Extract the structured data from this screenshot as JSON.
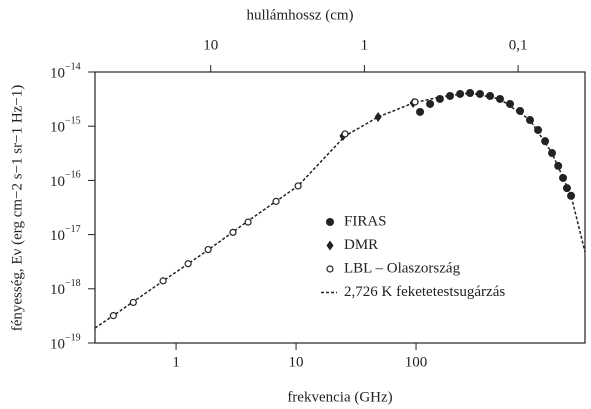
{
  "chart_data": {
    "type": "scatter",
    "xlabel": "frekvencia (GHz)",
    "x2label": "hullámhossz (cm)",
    "ylabel": "fényesség, Eν (erg cm−2 s−1 sr−1 Hz−1)",
    "xscale": "log",
    "yscale": "log",
    "x2scale": "log",
    "xlim": [
      0.211,
      2560
    ],
    "xticks": [
      1,
      10,
      100
    ],
    "x2lim": [
      56.6,
      0.0367
    ],
    "x2ticks": [
      10,
      1,
      {
        "value": 0.1,
        "label": "0,1"
      }
    ],
    "ylim": [
      1e-19,
      1e-14
    ],
    "yticks": [
      {
        "value": 1e-19,
        "label": "10",
        "exponent": "−19"
      },
      {
        "value": 1e-18,
        "label": "10",
        "exponent": "−18"
      },
      {
        "value": 1e-17,
        "label": "10",
        "exponent": "−17"
      },
      {
        "value": 1e-16,
        "label": "10",
        "exponent": "−16"
      },
      {
        "value": 1e-15,
        "label": "10",
        "exponent": "−15"
      },
      {
        "value": 1e-14,
        "label": "10",
        "exponent": "−14"
      }
    ],
    "legend": "right",
    "series": [
      {
        "name": "FIRAS",
        "marker": "filled-circle",
        "color": "#222",
        "x": [
          108,
          131,
          158,
          192,
          233,
          282,
          341,
          414,
          501,
          607,
          736,
          891,
          1040,
          1190,
          1360,
          1530,
          1680,
          1810,
          1960
        ],
        "values": [
          1.83e-15,
          2.57e-15,
          3.18e-15,
          3.61e-15,
          3.93e-15,
          4.1e-15,
          3.93e-15,
          3.61e-15,
          3.18e-15,
          2.57e-15,
          1.91e-15,
          1.3e-15,
          8.5e-16,
          5.3e-16,
          3.2e-16,
          1.85e-16,
          1.11e-16,
          7.2e-17,
          5.2e-17
        ]
      },
      {
        "name": "DMR",
        "marker": "diamond",
        "color": "#222",
        "x": [
          24.6,
          48.3,
          94.5
        ],
        "values": [
          6.6e-16,
          1.48e-15,
          2.68e-15
        ]
      },
      {
        "name": "LBL – Olaszország",
        "marker": "open-circle",
        "color": "#222",
        "x": [
          0.3,
          0.44,
          0.78,
          1.26,
          1.85,
          2.98,
          3.98,
          6.81,
          10.4,
          25.6,
          98
        ],
        "values": [
          3.2e-19,
          5.6e-19,
          1.4e-18,
          2.9e-18,
          5.3e-18,
          1.1e-17,
          1.7e-17,
          4.1e-17,
          7.9e-17,
          7.2e-16,
          2.8e-15
        ]
      },
      {
        "name": "2,726 K feketetestsugárzás",
        "marker": "dashed-line",
        "color": "#222",
        "x": [
          0.211,
          0.3,
          0.78,
          1.85,
          3.98,
          10.4,
          25.6,
          48.3,
          94.5,
          158,
          282,
          501,
          891,
          1360,
          1960,
          2560
        ],
        "values": [
          1.89e-19,
          3.2e-19,
          1.39e-18,
          5.2e-18,
          1.78e-17,
          7.9e-17,
          6.6e-16,
          1.48e-15,
          2.68e-15,
          3.46e-15,
          4.1e-15,
          3.18e-15,
          1.3e-15,
          3.2e-16,
          5.2e-17,
          4.8e-18
        ]
      }
    ]
  }
}
